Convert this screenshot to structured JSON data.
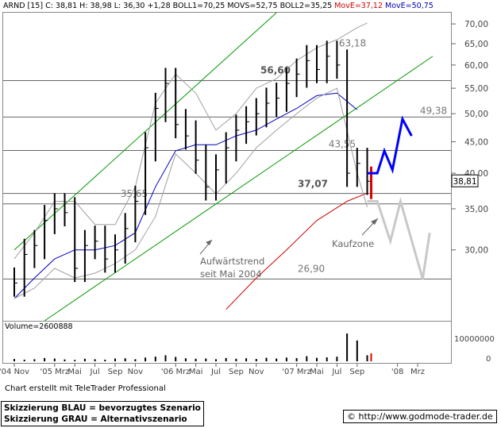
{
  "header": {
    "symbol": "ARND [15]",
    "close": "C: 38,81",
    "high": "H: 38,98",
    "low": "L: 36,30",
    "change": "+1,28",
    "boll1": "BOLL1=70,25",
    "movs": "MOVS=52,75",
    "boll2": "BOLL2=35,25",
    "move_red": "MovE=37,12",
    "move_blue": "MovE=50,75"
  },
  "chart_data": {
    "type": "line",
    "y_axis": {
      "ticks": [
        "70,00",
        "65,00",
        "60,00",
        "55,00",
        "50,00",
        "45,00",
        "40,00",
        "35,00",
        "30,00"
      ],
      "tick_values": [
        70,
        65,
        60,
        55,
        50,
        45,
        40,
        35,
        30
      ],
      "scale": "log",
      "range": [
        23,
        73
      ],
      "last_price_label": "38,81",
      "last_price": 38.81
    },
    "x_axis": {
      "ticks": [
        "'04 Nov",
        "'05 Mrz",
        "Mai",
        "Jul",
        "Sep",
        "Nov",
        "'06 Mrz",
        "Mai",
        "Jul",
        "Sep",
        "Nov",
        "'07 Mrz",
        "Mai",
        "Jul",
        "Sep",
        "'08",
        "Mrz"
      ],
      "tick_months": [
        0,
        4,
        6,
        8,
        10,
        12,
        16,
        18,
        20,
        22,
        24,
        28,
        30,
        32,
        34,
        38,
        40
      ]
    },
    "series": [
      {
        "name": "Kurs",
        "type": "bar",
        "color": "#000000",
        "x": [
          0,
          1,
          2,
          3,
          4,
          5,
          6,
          7,
          8,
          9,
          10,
          11,
          12,
          13,
          14,
          15,
          16,
          17,
          18,
          19,
          20,
          21,
          22,
          23,
          24,
          25,
          26,
          27,
          28,
          29,
          30,
          31,
          32,
          33,
          34,
          35
        ],
        "y": [
          26.5,
          29.5,
          30.5,
          33.5,
          35.0,
          34.5,
          28.0,
          30.5,
          31.0,
          29.0,
          30.0,
          32.5,
          36.0,
          44.0,
          51.0,
          56.0,
          48.0,
          46.0,
          42.0,
          38.0,
          40.5,
          44.0,
          47.0,
          48.5,
          50.0,
          52.0,
          53.0,
          56.0,
          58.0,
          61.0,
          59.0,
          62.0,
          60.0,
          40.0,
          41.5,
          38.81
        ]
      },
      {
        "name": "MovE=50,75",
        "color": "#0000c0",
        "x": [
          0,
          2,
          4,
          6,
          8,
          10,
          12,
          14,
          16,
          18,
          20,
          22,
          24,
          26,
          28,
          30,
          32,
          34
        ],
        "y": [
          25.0,
          27.0,
          29.0,
          30.0,
          30.0,
          30.5,
          32.0,
          38.0,
          43.5,
          44.5,
          44.5,
          46.0,
          47.0,
          49.0,
          51.0,
          53.5,
          54.0,
          50.75
        ]
      },
      {
        "name": "MovE=37,12",
        "color": "#cc0000",
        "x": [
          21,
          24,
          27,
          30,
          33,
          35
        ],
        "y": [
          24.0,
          27.0,
          30.0,
          33.5,
          36.0,
          37.12
        ]
      },
      {
        "name": "BOLL1=70,25",
        "color": "#a0a0a0",
        "x": [
          0,
          2,
          4,
          6,
          8,
          10,
          12,
          14,
          16,
          18,
          20,
          22,
          24,
          26,
          28,
          30,
          32,
          34,
          35
        ],
        "y": [
          29.0,
          32.0,
          36.0,
          36.0,
          33.0,
          33.0,
          38.0,
          52.0,
          58.0,
          54.0,
          47.0,
          50.0,
          55.0,
          57.0,
          61.0,
          64.0,
          66.0,
          69.0,
          70.25
        ]
      },
      {
        "name": "BOLL2=35,25",
        "color": "#a0a0a0",
        "x": [
          0,
          2,
          4,
          6,
          8,
          10,
          12,
          14,
          16,
          18,
          20,
          22,
          24,
          26,
          28,
          30,
          32,
          34,
          35
        ],
        "y": [
          25.0,
          26.0,
          28.0,
          27.0,
          27.5,
          28.5,
          30.0,
          34.0,
          43.0,
          40.0,
          37.0,
          40.0,
          44.0,
          47.0,
          50.0,
          53.0,
          55.0,
          40.0,
          35.25
        ]
      },
      {
        "name": "Skizzierung BLAU",
        "color": "#0000ff",
        "x": [
          35,
          36,
          36.7,
          37.5,
          38.5,
          39.4
        ],
        "y": [
          40.0,
          40.0,
          43.5,
          40.5,
          49.0,
          46.0
        ]
      },
      {
        "name": "Skizzierung GRAU",
        "color": "#c8c8c8",
        "x": [
          35,
          36,
          37.3,
          38.3,
          40.5,
          41.2
        ],
        "y": [
          36.0,
          36.0,
          31.0,
          36.0,
          26.9,
          32.0
        ]
      }
    ],
    "levels": [
      {
        "label": "63,18",
        "value": 63.18
      },
      {
        "label": "56,60",
        "value": 56.6
      },
      {
        "label": "49,38",
        "value": 49.38
      },
      {
        "label": "43,55",
        "value": 43.55
      },
      {
        "label": "37,07",
        "value": 37.07
      },
      {
        "label": "35,65",
        "value": 35.65
      },
      {
        "label": "26,90",
        "value": 26.9
      }
    ],
    "trend_lines": [
      {
        "name": "channel-upper",
        "color": "#009900",
        "points": [
          [
            0,
            30.0
          ],
          [
            26,
            73.0
          ]
        ]
      },
      {
        "name": "channel-lower",
        "color": "#009900",
        "points": [
          [
            3,
            23.0
          ],
          [
            41.5,
            62.0
          ]
        ]
      }
    ],
    "annotations": [
      {
        "text": "Aufwärtstrend",
        "line2": "seit Mai 2004"
      },
      {
        "text": "Kaufzone"
      }
    ],
    "volume": {
      "label": "Volume=2600888",
      "ticks": [
        "10000000",
        "0"
      ],
      "values": [
        1.0,
        0.7,
        0.9,
        1.4,
        1.2,
        0.8,
        0.6,
        1.1,
        0.9,
        0.7,
        1.2,
        1.3,
        0.9,
        1.6,
        2.0,
        2.6,
        1.9,
        1.3,
        1.1,
        1.2,
        0.9,
        1.4,
        1.1,
        1.3,
        1.0,
        1.5,
        1.2,
        1.6,
        1.4,
        2.2,
        1.5,
        1.7,
        2.0,
        12.0,
        9.0,
        2.6
      ]
    }
  },
  "footer": {
    "credit": "Chart erstellt mit TeleTrader Professional",
    "legend_blue": "Skizzierung BLAU = bevorzugtes Szenario",
    "legend_grey": "Skizzierung GRAU = Alternativszenario",
    "url": "© http://www.godmode-trader.de"
  }
}
